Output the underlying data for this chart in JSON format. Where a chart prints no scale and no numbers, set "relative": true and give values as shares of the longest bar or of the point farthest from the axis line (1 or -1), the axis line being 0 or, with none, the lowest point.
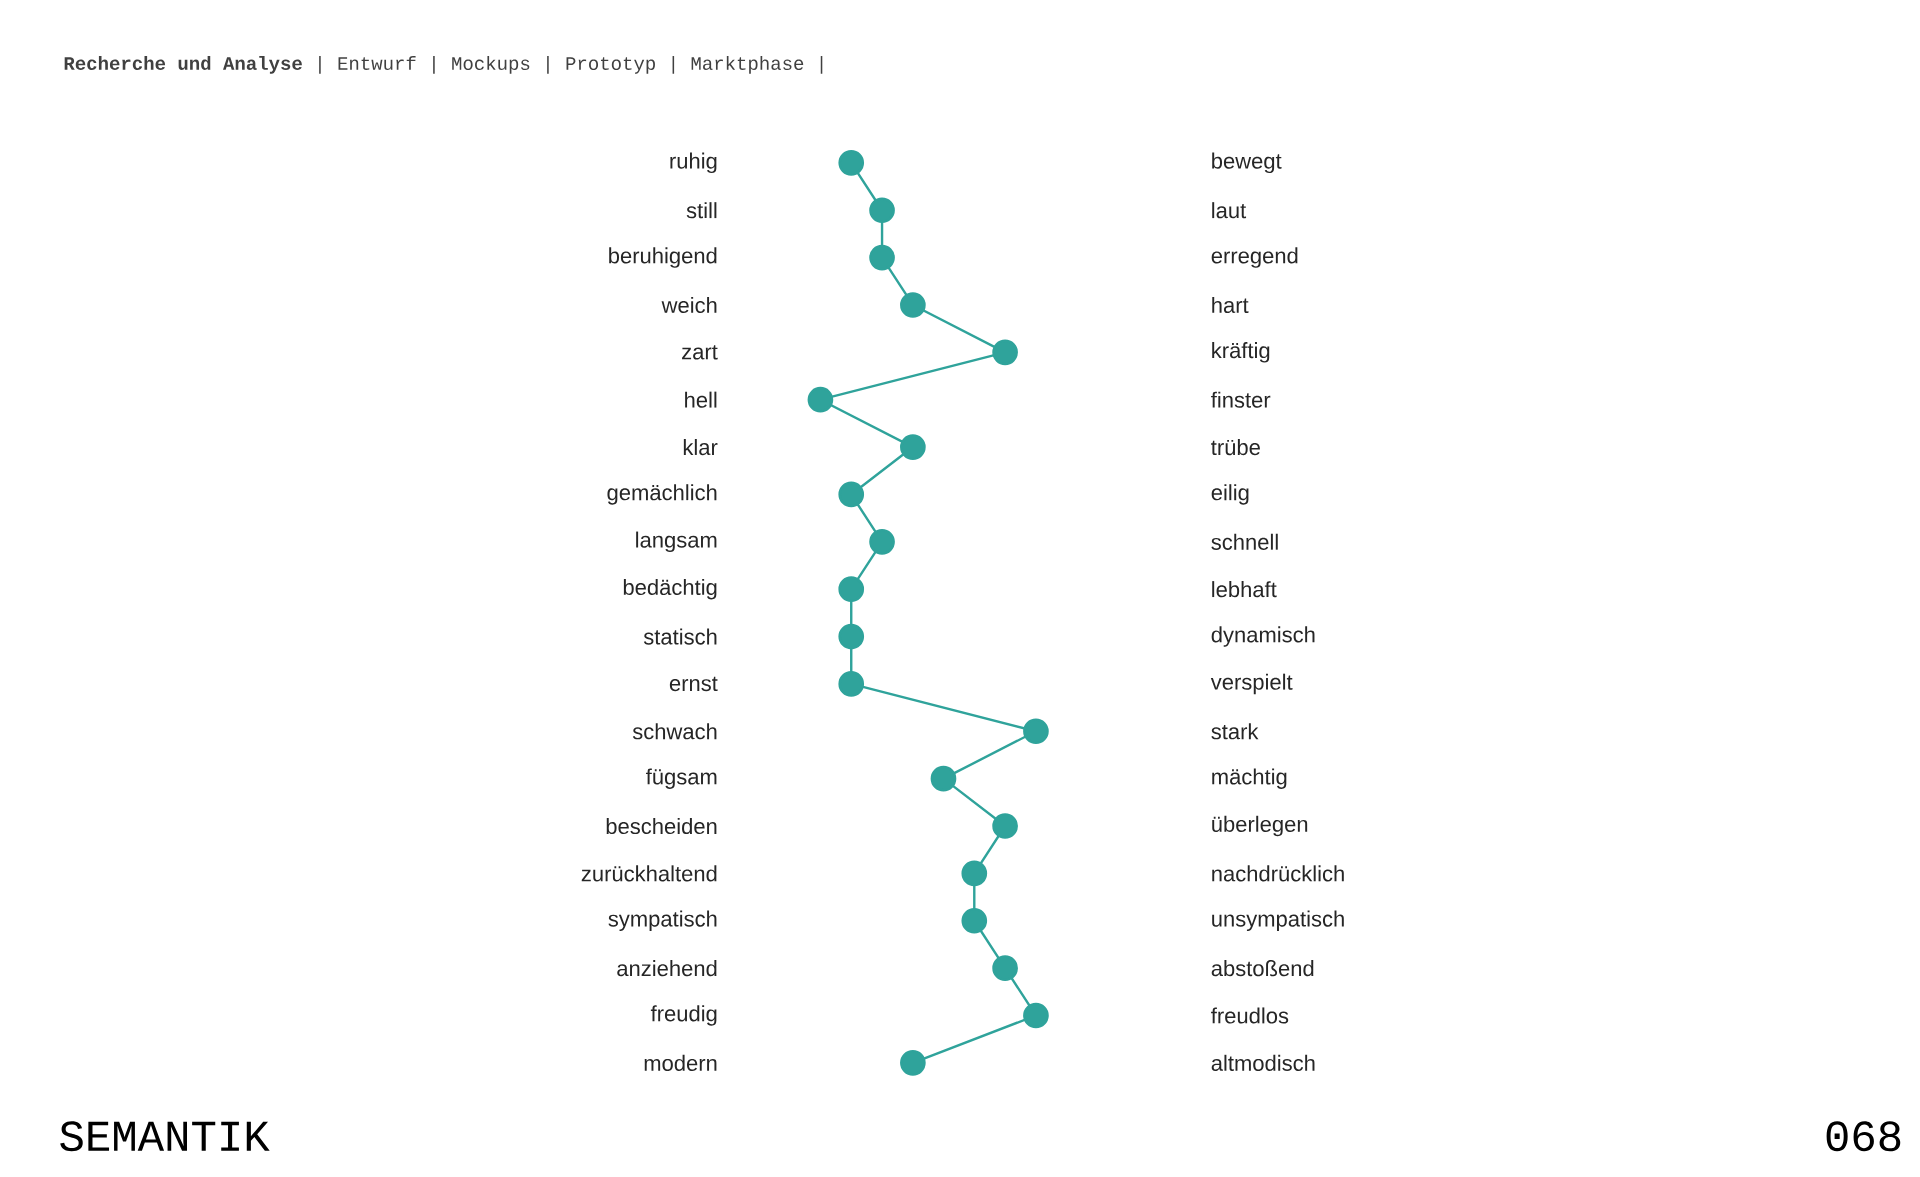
{
  "chart_data": {
    "type": "line",
    "title": "SEMANTIK",
    "subtitle": "**Recherche und Analyse** | Entwurf | Mockups | Prototyp | Marktphase |",
    "annotations": [
      "068"
    ],
    "orientation": "horizontal",
    "relative": true,
    "marker": "circle",
    "color": "#2fa39b",
    "categories": [
      "ruhig",
      "still",
      "beruhigend",
      "weich",
      "zart",
      "hell",
      "klar",
      "gemächlich",
      "langsam",
      "bedächtig",
      "statisch",
      "ernst",
      "schwach",
      "fügsam",
      "bescheiden",
      "zurückhaltend",
      "sympatisch",
      "anziehend",
      "freudig",
      "modern"
    ],
    "y2_categories": [
      "bewegt",
      "laut",
      "erregend",
      "hart",
      "kräftig",
      "finster",
      "trübe",
      "eilig",
      "schnell",
      "lebhaft",
      "dynamisch",
      "verspielt",
      "stark",
      "mächtig",
      "überlegen",
      "nachdrücklich",
      "unsympatisch",
      "abstoßend",
      "freudlos",
      "altmodisch"
    ],
    "values": [
      0.143,
      0.286,
      0.286,
      0.429,
      0.857,
      0,
      0.429,
      0.143,
      0.286,
      0.143,
      0.143,
      0.143,
      1,
      0.571,
      0.857,
      0.714,
      0.714,
      0.857,
      1,
      0.429
    ]
  }
}
